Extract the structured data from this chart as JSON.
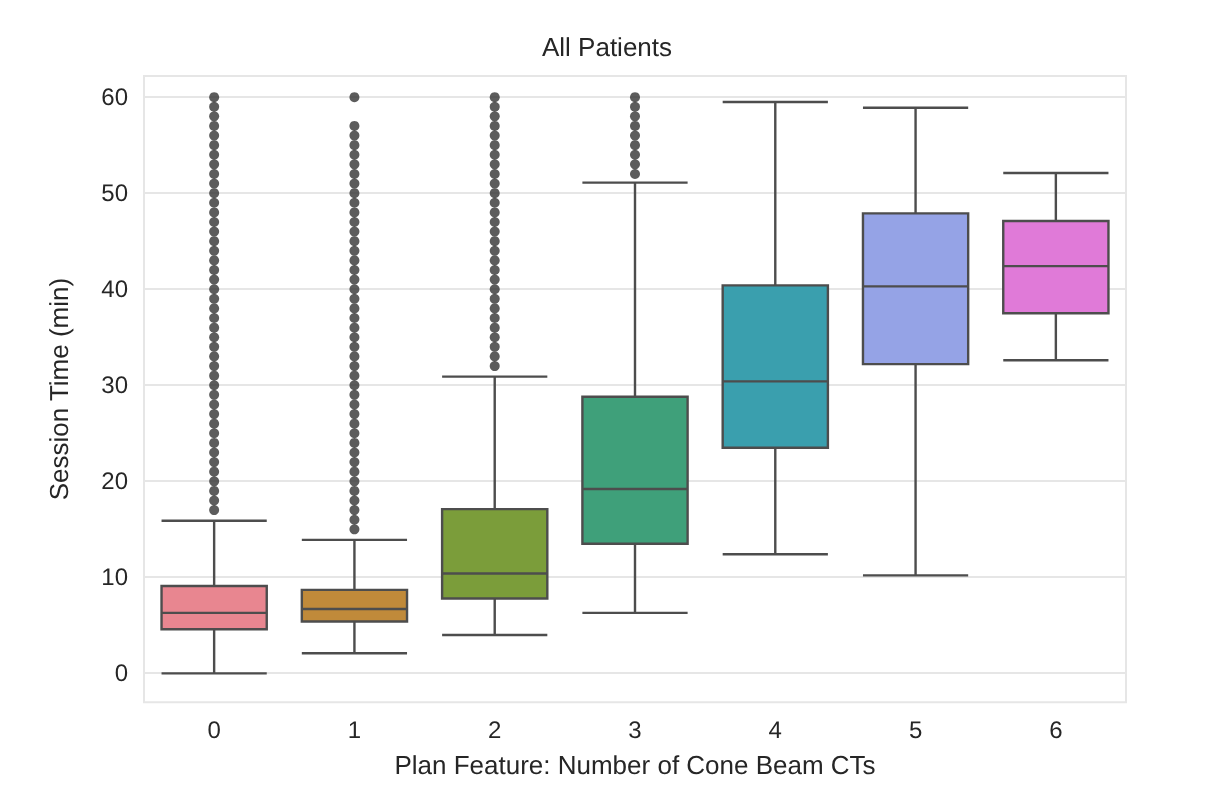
{
  "chart_data": {
    "type": "box",
    "title": "All Patients",
    "xlabel": "Plan Feature: Number of Cone Beam CTs",
    "ylabel": "Session Time (min)",
    "categories": [
      "0",
      "1",
      "2",
      "3",
      "4",
      "5",
      "6"
    ],
    "colors": [
      "#e88690",
      "#c08a3a",
      "#7b9d3a",
      "#3fa07a",
      "#3a9fae",
      "#95a3e6",
      "#e07ad8"
    ],
    "boxes": [
      {
        "low": 0,
        "q1": 4.6,
        "median": 6.3,
        "q3": 9.1,
        "high": 15.9,
        "outliers": [
          17,
          18,
          19,
          20,
          21,
          22,
          23,
          24,
          25,
          26,
          27,
          28,
          29,
          30,
          31,
          32,
          33,
          34,
          35,
          36,
          37,
          38,
          39,
          40,
          41,
          42,
          43,
          44,
          45,
          46,
          47,
          48,
          49,
          50,
          51,
          52,
          53,
          54,
          55,
          56,
          57,
          58,
          59,
          60
        ]
      },
      {
        "low": 2.1,
        "q1": 5.4,
        "median": 6.7,
        "q3": 8.7,
        "high": 13.9,
        "outliers": [
          15,
          16,
          17,
          18,
          19,
          20,
          21,
          22,
          23,
          24,
          25,
          26,
          27,
          28,
          29,
          30,
          31,
          32,
          33,
          34,
          35,
          36,
          37,
          38,
          39,
          40,
          41,
          42,
          43,
          44,
          45,
          46,
          47,
          48,
          49,
          50,
          51,
          52,
          53,
          54,
          55,
          56,
          57,
          60
        ]
      },
      {
        "low": 4.0,
        "q1": 7.8,
        "median": 10.4,
        "q3": 17.1,
        "high": 30.9,
        "outliers": [
          32,
          33,
          34,
          35,
          36,
          37,
          38,
          39,
          40,
          41,
          42,
          43,
          44,
          45,
          46,
          47,
          48,
          49,
          50,
          51,
          52,
          53,
          54,
          55,
          56,
          57,
          58,
          59,
          60
        ]
      },
      {
        "low": 6.3,
        "q1": 13.5,
        "median": 19.2,
        "q3": 28.8,
        "high": 51.1,
        "outliers": [
          52,
          53,
          54,
          55,
          56,
          57,
          58,
          59,
          60
        ]
      },
      {
        "low": 12.4,
        "q1": 23.5,
        "median": 30.4,
        "q3": 40.4,
        "high": 59.5
      },
      {
        "low": 10.2,
        "q1": 32.2,
        "median": 40.3,
        "q3": 47.9,
        "high": 58.9
      },
      {
        "low": 32.6,
        "q1": 37.5,
        "median": 42.4,
        "q3": 47.1,
        "high": 52.1
      }
    ],
    "ylim": [
      -3,
      62.2
    ],
    "yticks": [
      0,
      10,
      20,
      30,
      40,
      50,
      60
    ],
    "grid": "y"
  }
}
